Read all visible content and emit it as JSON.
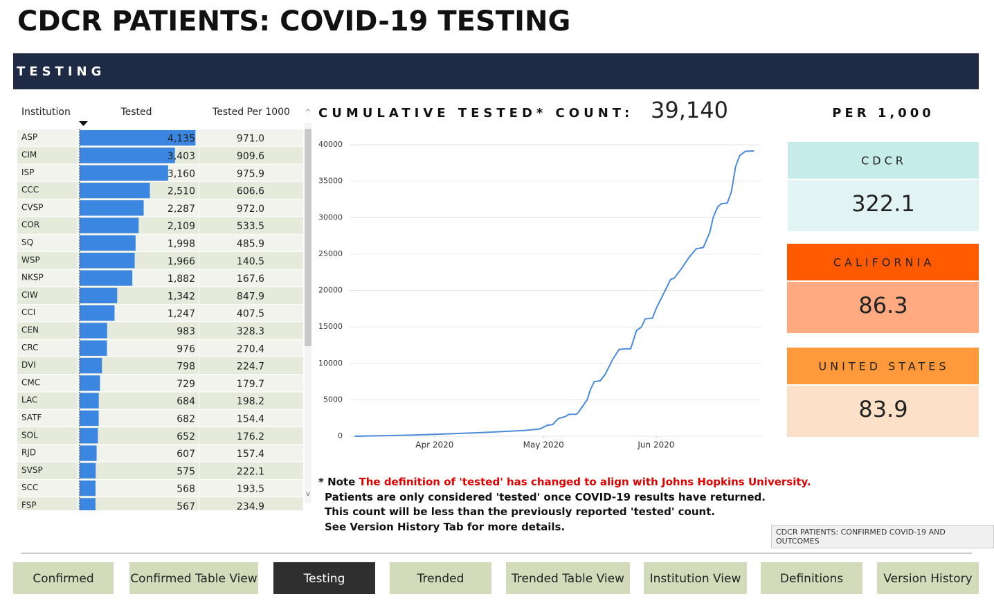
{
  "header": {
    "title": "CDCR PATIENTS: COVID-19 TESTING",
    "section": "TESTING"
  },
  "table": {
    "columns": [
      "Institution",
      "Tested",
      "Tested Per 1000"
    ],
    "institutions": [
      "ASP",
      "CIM",
      "ISP",
      "CCC",
      "CVSP",
      "COR",
      "SQ",
      "WSP",
      "NKSP",
      "CIW",
      "CCI",
      "CEN",
      "CRC",
      "DVI",
      "CMC",
      "LAC",
      "SATF",
      "SOL",
      "RJD",
      "SVSP",
      "SCC",
      "FSP"
    ],
    "tested": [
      4135,
      3403,
      3160,
      2510,
      2287,
      2109,
      1998,
      1966,
      1882,
      1342,
      1247,
      983,
      976,
      798,
      729,
      684,
      682,
      652,
      607,
      575,
      568,
      567
    ],
    "tested_labels": [
      "4,135",
      "3,403",
      "3,160",
      "2,510",
      "2,287",
      "2,109",
      "1,998",
      "1,966",
      "1,882",
      "1,342",
      "1,247",
      "983",
      "976",
      "798",
      "729",
      "684",
      "682",
      "652",
      "607",
      "575",
      "568",
      "567"
    ],
    "per_1000": [
      "971.0",
      "909.6",
      "975.9",
      "606.6",
      "972.0",
      "533.5",
      "485.9",
      "140.5",
      "167.6",
      "847.9",
      "407.5",
      "328.3",
      "270.4",
      "224.7",
      "179.7",
      "198.2",
      "154.4",
      "176.2",
      "157.4",
      "222.1",
      "193.5",
      "234.9"
    ],
    "xlim": [
      0,
      4300
    ],
    "color": "#3a86e0"
  },
  "chart_data": {
    "type": "line",
    "title": "CUMULATIVE TESTED* COUNT:",
    "total": "39,140",
    "x": [
      70,
      86,
      105,
      117,
      121,
      123,
      124.5,
      126,
      128,
      129,
      131,
      131.5,
      134,
      135,
      136,
      137.6,
      139,
      140,
      141,
      142.8,
      144.7,
      146,
      147.6,
      149,
      150,
      152,
      153,
      155,
      157,
      158,
      160,
      162,
      164,
      166,
      167.8,
      168.7,
      170,
      171,
      172.6,
      173.7,
      174.9,
      176,
      177.6,
      180
    ],
    "values": [
      0,
      150,
      500,
      800,
      1000,
      1500,
      1600,
      2400,
      2700,
      3000,
      3000,
      3200,
      5000,
      6500,
      7500,
      7600,
      8500,
      9500,
      10500,
      11900,
      12000,
      12000,
      14500,
      15000,
      16100,
      16200,
      17500,
      19500,
      21500,
      21700,
      23000,
      24500,
      25700,
      25900,
      28000,
      30000,
      31500,
      31900,
      32000,
      33500,
      37000,
      38500,
      39100,
      39140
    ],
    "xlim": [
      60,
      182
    ],
    "ylim": [
      0,
      40000
    ],
    "xticks": [
      {
        "value": 92,
        "label": "Apr 2020"
      },
      {
        "value": 122,
        "label": "May 2020"
      },
      {
        "value": 153,
        "label": "Jun 2020"
      }
    ],
    "yticks": [
      0,
      5000,
      10000,
      15000,
      20000,
      25000,
      30000,
      35000,
      40000
    ],
    "grid": true,
    "color": "#4a8ad8"
  },
  "rates": {
    "title": "PER 1,000",
    "cards": [
      {
        "label": "CDCR",
        "value": "322.1"
      },
      {
        "label": "CALIFORNIA",
        "value": "86.3"
      },
      {
        "label": "UNITED STATES",
        "value": "83.9"
      }
    ]
  },
  "note": {
    "prefix": "* Note",
    "highlight": "The definition of 'tested' has changed to align with Johns Hopkins University.",
    "lines": [
      "Patients are only considered 'tested' once COVID-19 results have returned.",
      "This count will be less than the previously reported 'tested' count.",
      "See Version History Tab for more details."
    ]
  },
  "tooltip": "CDCR PATIENTS: CONFIRMED COVID-19 AND OUTCOMES",
  "tabs": [
    "Confirmed",
    "Confirmed Table View",
    "Testing",
    "Trended",
    "Trended Table View",
    "Institution View",
    "Definitions",
    "Version History"
  ]
}
